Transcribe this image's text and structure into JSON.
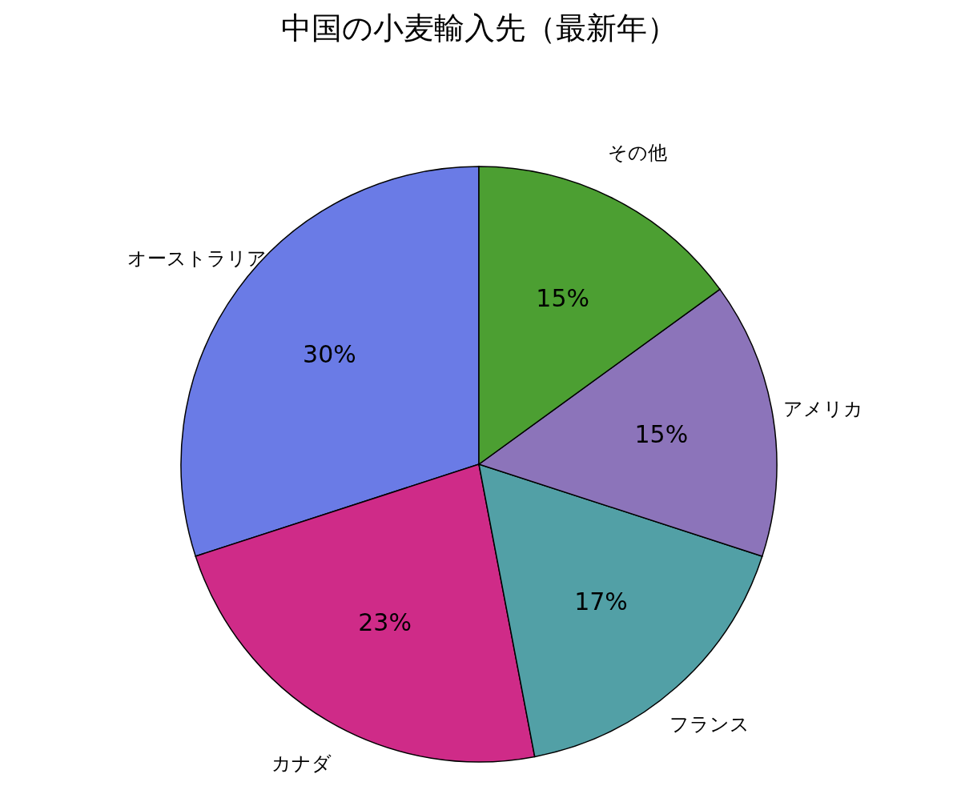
{
  "chart_data": {
    "type": "pie",
    "title": "中国の小麦輸入先（最新年）",
    "categories": [
      "オーストラリア",
      "カナダ",
      "フランス",
      "アメリカ",
      "その他"
    ],
    "values": [
      30,
      23,
      17,
      15,
      15
    ],
    "value_labels": [
      "30%",
      "23%",
      "17%",
      "15%",
      "15%"
    ],
    "colors": [
      "#6a7be6",
      "#cf2b88",
      "#52a0a6",
      "#8c74ba",
      "#4c9f32"
    ],
    "legend": false
  }
}
